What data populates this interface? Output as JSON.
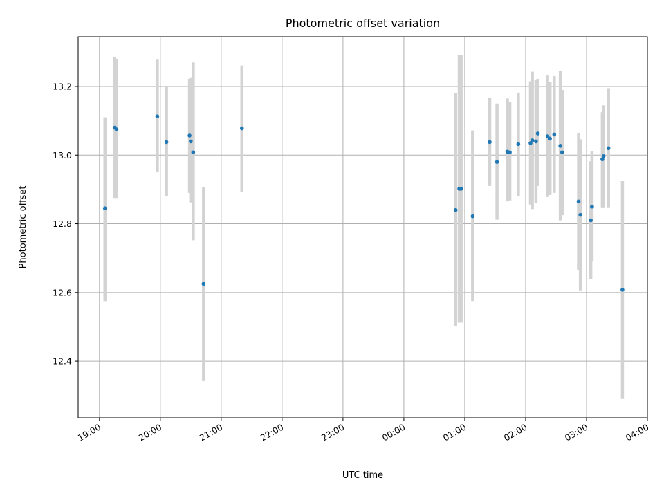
{
  "chart_data": {
    "type": "scatter",
    "title": "Photometric offset variation",
    "xlabel": "UTC time",
    "ylabel": "Photometric offset",
    "x_ticks": [
      "19:00",
      "20:00",
      "21:00",
      "22:00",
      "23:00",
      "00:00",
      "01:00",
      "02:00",
      "03:00",
      "04:00"
    ],
    "y_ticks": [
      "12.4",
      "12.6",
      "12.8",
      "13.0",
      "13.2"
    ],
    "x_range_hours": [
      -0.35,
      9.0
    ],
    "ylim": [
      12.235,
      13.345
    ],
    "grid": true,
    "colors": {
      "point": "#1f77b4",
      "errorbar": "#d3d3d3"
    },
    "points": [
      {
        "x": 0.09,
        "y": 12.845,
        "lo": 12.575,
        "hi": 13.11
      },
      {
        "x": 0.25,
        "y": 13.08,
        "lo": 12.875,
        "hi": 13.285
      },
      {
        "x": 0.28,
        "y": 13.075,
        "lo": 12.875,
        "hi": 13.28
      },
      {
        "x": 0.95,
        "y": 13.113,
        "lo": 12.95,
        "hi": 13.278
      },
      {
        "x": 1.1,
        "y": 13.038,
        "lo": 12.88,
        "hi": 13.2
      },
      {
        "x": 1.48,
        "y": 13.057,
        "lo": 12.89,
        "hi": 13.222
      },
      {
        "x": 1.5,
        "y": 13.04,
        "lo": 12.862,
        "hi": 13.225
      },
      {
        "x": 1.54,
        "y": 13.008,
        "lo": 12.752,
        "hi": 13.27
      },
      {
        "x": 1.71,
        "y": 12.625,
        "lo": 12.342,
        "hi": 12.906
      },
      {
        "x": 2.34,
        "y": 13.078,
        "lo": 12.892,
        "hi": 13.261
      },
      {
        "x": 5.85,
        "y": 12.84,
        "lo": 12.502,
        "hi": 13.18
      },
      {
        "x": 5.91,
        "y": 12.902,
        "lo": 12.512,
        "hi": 13.292
      },
      {
        "x": 5.94,
        "y": 12.902,
        "lo": 12.512,
        "hi": 13.292
      },
      {
        "x": 6.13,
        "y": 12.822,
        "lo": 12.575,
        "hi": 13.072
      },
      {
        "x": 6.41,
        "y": 13.038,
        "lo": 12.91,
        "hi": 13.168
      },
      {
        "x": 6.53,
        "y": 12.98,
        "lo": 12.812,
        "hi": 13.15
      },
      {
        "x": 6.7,
        "y": 13.01,
        "lo": 12.865,
        "hi": 13.165
      },
      {
        "x": 6.74,
        "y": 13.008,
        "lo": 12.868,
        "hi": 13.155
      },
      {
        "x": 6.88,
        "y": 13.032,
        "lo": 12.88,
        "hi": 13.182
      },
      {
        "x": 7.08,
        "y": 13.035,
        "lo": 12.856,
        "hi": 13.215
      },
      {
        "x": 7.11,
        "y": 13.043,
        "lo": 12.843,
        "hi": 13.243
      },
      {
        "x": 7.17,
        "y": 13.04,
        "lo": 12.86,
        "hi": 13.22
      },
      {
        "x": 7.2,
        "y": 13.063,
        "lo": 12.91,
        "hi": 13.222
      },
      {
        "x": 7.36,
        "y": 13.055,
        "lo": 12.878,
        "hi": 13.232
      },
      {
        "x": 7.4,
        "y": 13.048,
        "lo": 12.884,
        "hi": 13.212
      },
      {
        "x": 7.47,
        "y": 13.06,
        "lo": 12.89,
        "hi": 13.23
      },
      {
        "x": 7.57,
        "y": 13.027,
        "lo": 12.81,
        "hi": 13.245
      },
      {
        "x": 7.6,
        "y": 13.008,
        "lo": 12.825,
        "hi": 13.19
      },
      {
        "x": 7.87,
        "y": 12.865,
        "lo": 12.664,
        "hi": 13.064
      },
      {
        "x": 7.9,
        "y": 12.826,
        "lo": 12.606,
        "hi": 13.046
      },
      {
        "x": 8.07,
        "y": 12.81,
        "lo": 12.638,
        "hi": 12.982
      },
      {
        "x": 8.09,
        "y": 12.85,
        "lo": 12.69,
        "hi": 13.012
      },
      {
        "x": 8.26,
        "y": 12.988,
        "lo": 12.848,
        "hi": 13.125
      },
      {
        "x": 8.28,
        "y": 12.997,
        "lo": 12.848,
        "hi": 13.145
      },
      {
        "x": 8.36,
        "y": 13.02,
        "lo": 12.848,
        "hi": 13.195
      },
      {
        "x": 8.59,
        "y": 12.608,
        "lo": 12.29,
        "hi": 12.925
      }
    ]
  }
}
